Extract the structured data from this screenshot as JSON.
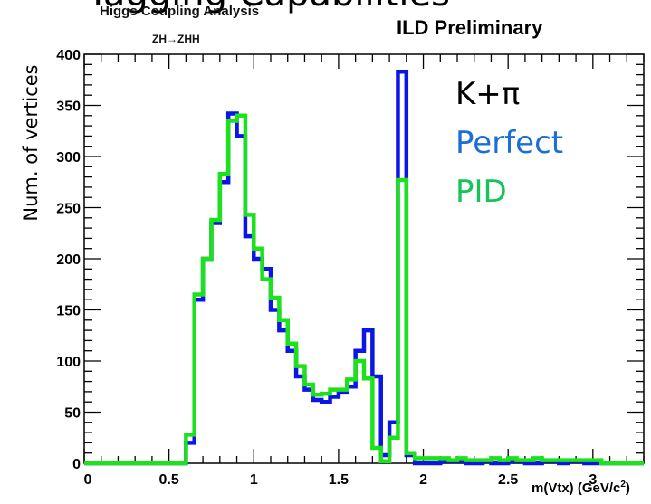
{
  "header": {
    "top_cut_text": "Tagging Capabilities",
    "title_line1": "Higgs Coupling Analysis",
    "title_line2": "ZH→ZHH",
    "preliminary": "ILD Preliminary"
  },
  "legend": {
    "line1": "K+π",
    "line2": "Perfect",
    "line3": "PID"
  },
  "colors": {
    "perfect": "#0a16e6",
    "pid": "#1be21b",
    "legend_perfect": "#1a6fd6",
    "legend_pid": "#19c25a"
  },
  "chart_data": {
    "type": "histogram",
    "title": "Higgs Coupling Analysis",
    "subtitle": "ZH→ZHH",
    "xlabel": "m(Vtx) (GeV/c²)",
    "xlabel_main": "m(Vtx) (GeV/c",
    "xlabel_sup": "2",
    "xlabel_tail": ")",
    "ylabel": "Num. of vertices",
    "xlim": [
      0,
      3.3
    ],
    "ylim": [
      0,
      400
    ],
    "bin_width": 0.05,
    "x_ticks": [
      0,
      0.5,
      1,
      1.5,
      2,
      2.5,
      3
    ],
    "x_tick_labels": [
      "0",
      "0.5",
      "1",
      "1.5",
      "2",
      "2.5",
      "3"
    ],
    "y_ticks": [
      0,
      50,
      100,
      150,
      200,
      250,
      300,
      350,
      400
    ],
    "y_tick_labels": [
      "0",
      "50",
      "100",
      "150",
      "200",
      "250",
      "300",
      "350",
      "400"
    ],
    "series": [
      {
        "name": "Perfect",
        "bin_starts": [
          0,
          0.05,
          0.1,
          0.15,
          0.2,
          0.25,
          0.3,
          0.35,
          0.4,
          0.45,
          0.5,
          0.55,
          0.6,
          0.65,
          0.7,
          0.75,
          0.8,
          0.85,
          0.9,
          0.95,
          1.0,
          1.05,
          1.1,
          1.15,
          1.2,
          1.25,
          1.3,
          1.35,
          1.4,
          1.45,
          1.5,
          1.55,
          1.6,
          1.65,
          1.7,
          1.75,
          1.8,
          1.85,
          1.9,
          1.95,
          2.0,
          2.05,
          2.1,
          2.15,
          2.2,
          2.25,
          2.3,
          2.35,
          2.4,
          2.45,
          2.5,
          2.55,
          2.6,
          2.65,
          2.7,
          2.75,
          2.8,
          2.85,
          2.9,
          2.95,
          3.0,
          3.05,
          3.1,
          3.15,
          3.2,
          3.25
        ],
        "values": [
          0,
          0,
          0,
          0,
          0,
          0,
          0,
          0,
          0,
          0,
          0,
          0,
          20,
          160,
          200,
          235,
          275,
          342,
          320,
          222,
          200,
          190,
          150,
          130,
          110,
          85,
          72,
          62,
          60,
          65,
          70,
          75,
          110,
          130,
          85,
          8,
          40,
          383,
          8,
          0,
          0,
          0,
          2,
          2,
          2,
          0,
          0,
          2,
          0,
          0,
          2,
          2,
          0,
          0,
          2,
          2,
          0,
          2,
          2,
          0,
          0,
          0,
          0,
          0,
          0,
          0
        ]
      },
      {
        "name": "PID",
        "bin_starts": [
          0,
          0.05,
          0.1,
          0.15,
          0.2,
          0.25,
          0.3,
          0.35,
          0.4,
          0.45,
          0.5,
          0.55,
          0.6,
          0.65,
          0.7,
          0.75,
          0.8,
          0.85,
          0.9,
          0.95,
          1.0,
          1.05,
          1.1,
          1.15,
          1.2,
          1.25,
          1.3,
          1.35,
          1.4,
          1.45,
          1.5,
          1.55,
          1.6,
          1.65,
          1.7,
          1.75,
          1.8,
          1.85,
          1.9,
          1.95,
          2.0,
          2.05,
          2.1,
          2.15,
          2.2,
          2.25,
          2.3,
          2.35,
          2.4,
          2.45,
          2.5,
          2.55,
          2.6,
          2.65,
          2.7,
          2.75,
          2.8,
          2.85,
          2.9,
          2.95,
          3.0,
          3.05,
          3.1,
          3.15,
          3.2,
          3.25
        ],
        "values": [
          0,
          0,
          0,
          0,
          0,
          0,
          0,
          0,
          0,
          0,
          0,
          0,
          28,
          165,
          200,
          238,
          283,
          335,
          340,
          243,
          210,
          180,
          162,
          140,
          117,
          95,
          77,
          67,
          68,
          72,
          72,
          82,
          100,
          83,
          15,
          2,
          25,
          277,
          10,
          5,
          5,
          5,
          5,
          3,
          5,
          3,
          3,
          3,
          5,
          3,
          5,
          3,
          3,
          5,
          3,
          3,
          3,
          3,
          3,
          3,
          3,
          0,
          0,
          0,
          0,
          0
        ]
      }
    ]
  }
}
